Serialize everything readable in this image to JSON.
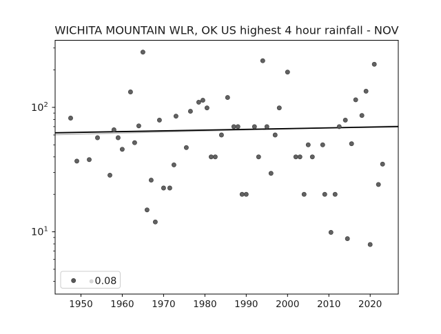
{
  "figure": {
    "background": "#ffffff"
  },
  "chart_data": {
    "type": "scatter",
    "title": "WICHITA MOUNTAIN WLR, OK US highest 4 hour rainfall - NOV",
    "xlabel": "",
    "ylabel": "",
    "grid": false,
    "x_axis": {
      "lim": [
        1943.75,
        2026.8
      ],
      "ticks": [
        1950,
        1960,
        1970,
        1980,
        1990,
        2000,
        2010,
        2020
      ],
      "tick_labels": [
        "1950",
        "1960",
        "1970",
        "1980",
        "1990",
        "2000",
        "2010",
        "2020"
      ]
    },
    "y_axis": {
      "scale": "log",
      "lim": [
        3.16,
        346
      ],
      "major_ticks": [
        {
          "value": 10,
          "base": "10",
          "exp": "1"
        },
        {
          "value": 100,
          "base": "10",
          "exp": "2"
        }
      ],
      "minor_ticks": [
        4,
        5,
        6,
        7,
        8,
        9,
        20,
        30,
        40,
        50,
        60,
        70,
        80,
        90,
        200,
        300
      ]
    },
    "series": [
      {
        "name": "highest-4-hour-rainfall",
        "marker": "circle",
        "color": "#585858",
        "edge_color": "#3d3d3d",
        "points": [
          [
            1947.5,
            82
          ],
          [
            1949,
            37
          ],
          [
            1952,
            38
          ],
          [
            1954,
            57
          ],
          [
            1957,
            28.5
          ],
          [
            1958,
            66
          ],
          [
            1959,
            57
          ],
          [
            1960,
            46
          ],
          [
            1962,
            133
          ],
          [
            1963,
            52
          ],
          [
            1964,
            71
          ],
          [
            1965,
            278
          ],
          [
            1966,
            15
          ],
          [
            1967,
            26
          ],
          [
            1968,
            12
          ],
          [
            1969,
            79
          ],
          [
            1970,
            22.5
          ],
          [
            1971.5,
            22.5
          ],
          [
            1972.5,
            34.5
          ],
          [
            1973,
            85
          ],
          [
            1975.5,
            47.5
          ],
          [
            1976.5,
            93
          ],
          [
            1978.5,
            110
          ],
          [
            1979.5,
            114
          ],
          [
            1980.5,
            99
          ],
          [
            1981.5,
            40
          ],
          [
            1982.5,
            40
          ],
          [
            1984,
            60
          ],
          [
            1985.5,
            120
          ],
          [
            1987,
            70
          ],
          [
            1988,
            70
          ],
          [
            1989,
            20
          ],
          [
            1990,
            20
          ],
          [
            1992,
            70
          ],
          [
            1993,
            40
          ],
          [
            1994,
            237
          ],
          [
            1995,
            70
          ],
          [
            1996,
            29.5
          ],
          [
            1997,
            60
          ],
          [
            1998,
            99
          ],
          [
            2000,
            192
          ],
          [
            2002,
            40
          ],
          [
            2003,
            40
          ],
          [
            2004,
            20
          ],
          [
            2005,
            50
          ],
          [
            2006,
            40
          ],
          [
            2008.5,
            50
          ],
          [
            2009,
            20
          ],
          [
            2010.5,
            9.9
          ],
          [
            2011.5,
            20
          ],
          [
            2012.5,
            70
          ],
          [
            2014,
            79
          ],
          [
            2014.5,
            8.8
          ],
          [
            2015.5,
            51
          ],
          [
            2016.5,
            115
          ],
          [
            2018,
            86
          ],
          [
            2019,
            135
          ],
          [
            2020,
            7.9
          ],
          [
            2021,
            222
          ],
          [
            2022,
            24
          ],
          [
            2023,
            35
          ]
        ]
      }
    ],
    "trend_lines": [
      {
        "name": "trend-gray",
        "color": "#bbbbbb",
        "width": 1.6,
        "x": [
          1943.75,
          2026.8
        ],
        "y": [
          60.3,
          70.9
        ]
      },
      {
        "name": "trend-black",
        "color": "#000000",
        "width": 1.8,
        "x": [
          1943.75,
          2026.8
        ],
        "y": [
          62.5,
          70.0
        ]
      }
    ],
    "legend": {
      "label": "0.08",
      "position": "lower-left",
      "marker_colors": [
        "#585858",
        "#d6d6d6"
      ]
    }
  }
}
